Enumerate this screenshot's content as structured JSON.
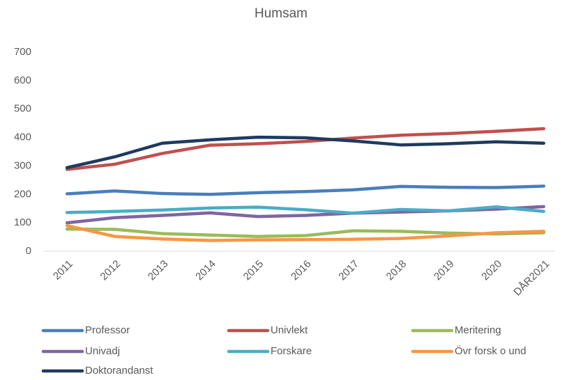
{
  "chart_data": {
    "type": "line",
    "title": "Humsam",
    "categories": [
      "2011",
      "2012",
      "2013",
      "2014",
      "2015",
      "2016",
      "2017",
      "2018",
      "2019",
      "2020",
      "DÅR2021"
    ],
    "series": [
      {
        "name": "Professor",
        "color": "#4a7ebb",
        "values": [
          202,
          212,
          203,
          200,
          206,
          210,
          216,
          228,
          225,
          224,
          229
        ]
      },
      {
        "name": "Univlekt",
        "color": "#c0504d",
        "values": [
          288,
          306,
          344,
          373,
          378,
          386,
          398,
          408,
          414,
          422,
          431
        ]
      },
      {
        "name": "Meritering",
        "color": "#9bbb59",
        "values": [
          78,
          77,
          62,
          57,
          52,
          55,
          72,
          70,
          64,
          61,
          65
        ]
      },
      {
        "name": "Univadj",
        "color": "#8064a2",
        "values": [
          100,
          118,
          126,
          135,
          122,
          126,
          134,
          138,
          142,
          148,
          157
        ]
      },
      {
        "name": "Forskare",
        "color": "#4bacc6",
        "values": [
          136,
          140,
          145,
          152,
          155,
          146,
          134,
          147,
          142,
          156,
          140
        ]
      },
      {
        "name": "Övr forsk o und",
        "color": "#f79646",
        "values": [
          90,
          52,
          43,
          38,
          40,
          41,
          42,
          45,
          54,
          65,
          70
        ]
      },
      {
        "name": "Doktorandanst",
        "color": "#1f3a5f",
        "values": [
          294,
          332,
          380,
          392,
          401,
          399,
          388,
          374,
          378,
          385,
          380
        ]
      }
    ],
    "ylim": [
      0,
      700
    ],
    "yticks": [
      0,
      100,
      200,
      300,
      400,
      500,
      600,
      700
    ],
    "grid": false
  }
}
